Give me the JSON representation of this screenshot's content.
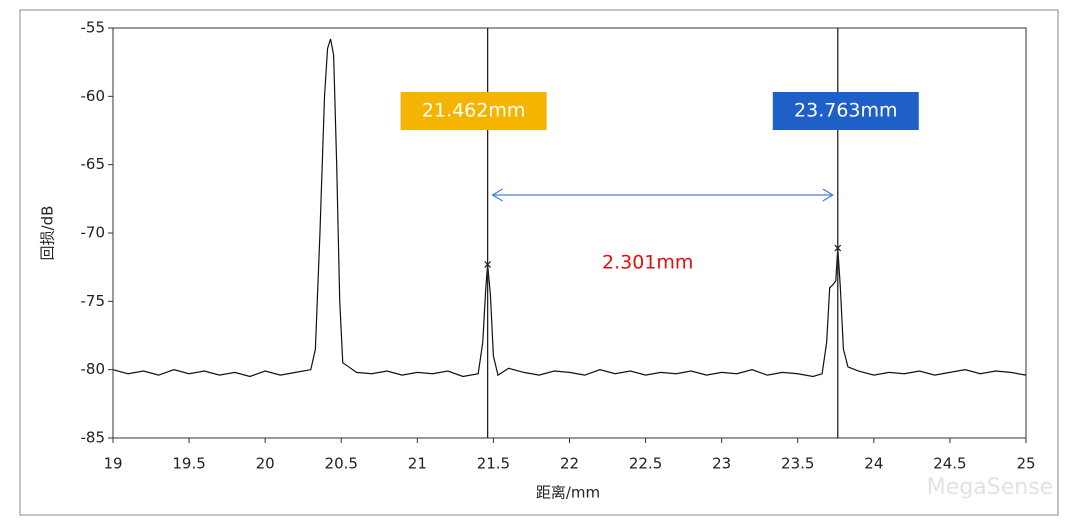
{
  "chart_data": {
    "type": "line",
    "xlabel": "距离/mm",
    "ylabel": "回损/dB",
    "xlim": [
      19,
      25
    ],
    "ylim": [
      -85,
      -55
    ],
    "xticks": [
      19,
      19.5,
      20,
      20.5,
      21,
      21.5,
      22,
      22.5,
      23,
      23.5,
      24,
      24.5,
      25
    ],
    "yticks": [
      -85,
      -80,
      -75,
      -70,
      -65,
      -60,
      -55
    ],
    "watermark": "MegaSense",
    "series": [
      {
        "color": "#111111",
        "x": [
          19.0,
          19.1,
          19.2,
          19.3,
          19.4,
          19.5,
          19.6,
          19.7,
          19.8,
          19.9,
          20.0,
          20.1,
          20.2,
          20.3,
          20.33,
          20.36,
          20.39,
          20.41,
          20.43,
          20.45,
          20.47,
          20.49,
          20.51,
          20.55,
          20.6,
          20.7,
          20.8,
          20.9,
          21.0,
          21.1,
          21.2,
          21.3,
          21.4,
          21.43,
          21.45,
          21.462,
          21.48,
          21.5,
          21.53,
          21.6,
          21.7,
          21.8,
          21.9,
          22.0,
          22.1,
          22.2,
          22.3,
          22.4,
          22.5,
          22.6,
          22.7,
          22.8,
          22.9,
          23.0,
          23.1,
          23.2,
          23.3,
          23.4,
          23.5,
          23.6,
          23.66,
          23.69,
          23.71,
          23.73,
          23.75,
          23.763,
          23.78,
          23.8,
          23.83,
          23.9,
          24.0,
          24.1,
          24.2,
          24.3,
          24.4,
          24.5,
          24.6,
          24.7,
          24.8,
          24.9,
          25.0
        ],
        "values": [
          -80.0,
          -80.3,
          -80.1,
          -80.4,
          -80.0,
          -80.3,
          -80.1,
          -80.4,
          -80.2,
          -80.5,
          -80.1,
          -80.4,
          -80.2,
          -80.0,
          -78.5,
          -70,
          -60,
          -56.5,
          -55.8,
          -57,
          -65,
          -75,
          -79.5,
          -79.8,
          -80.2,
          -80.3,
          -80.1,
          -80.4,
          -80.2,
          -80.3,
          -80.1,
          -80.5,
          -80.3,
          -78,
          -74,
          -72.3,
          -74.5,
          -79,
          -80.4,
          -79.9,
          -80.2,
          -80.4,
          -80.1,
          -80.2,
          -80.4,
          -80.0,
          -80.3,
          -80.1,
          -80.4,
          -80.2,
          -80.3,
          -80.1,
          -80.4,
          -80.2,
          -80.3,
          -80.0,
          -80.4,
          -80.2,
          -80.3,
          -80.5,
          -80.3,
          -78,
          -74,
          -73.8,
          -73.5,
          -71.1,
          -74,
          -78.5,
          -79.8,
          -80.1,
          -80.4,
          -80.2,
          -80.3,
          -80.1,
          -80.4,
          -80.2,
          -80.0,
          -80.3,
          -80.1,
          -80.2,
          -80.4
        ]
      }
    ],
    "cursors": [
      {
        "x": {
          "value": 21.462,
          "label": "21.462mm"
        },
        "y": -72.3,
        "color": "#f5b400"
      },
      {
        "x": {
          "value": 23.763,
          "label": "23.763mm"
        },
        "y": -71.1,
        "color": "#1f5fc8"
      }
    ],
    "delta": {
      "value": 2.301,
      "label": "2.301mm"
    },
    "delta_color": "#e01010",
    "arrow_color": "#4a7fd4"
  }
}
